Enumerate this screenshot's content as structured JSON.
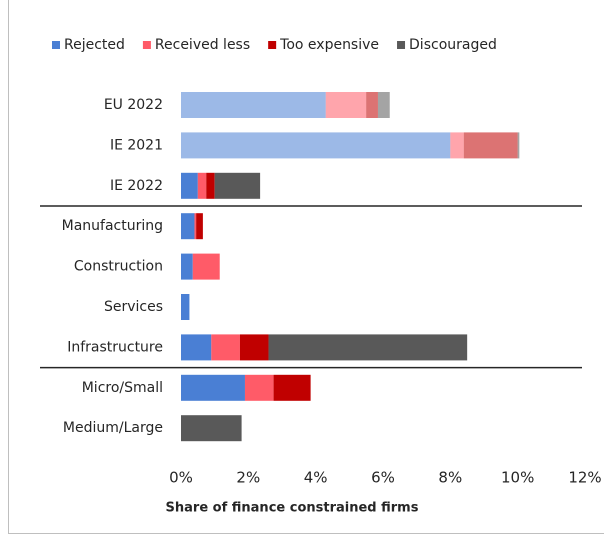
{
  "chart_data": {
    "type": "stacked-barh",
    "xlabel": "Share of finance constrained firms",
    "categories": [
      "EU 2022",
      "IE 2021",
      "IE 2022",
      "Manufacturing",
      "Construction",
      "Services",
      "Infrastructure",
      "Micro/Small",
      "Medium/Large"
    ],
    "category_opacity": [
      0.55,
      0.55,
      1,
      1,
      1,
      1,
      1,
      1,
      1
    ],
    "series": [
      {
        "name": "Rejected",
        "color": "#4a7fd4",
        "values": [
          4.3,
          8.0,
          0.5,
          0.4,
          0.35,
          0.25,
          0.9,
          1.9,
          0
        ]
      },
      {
        "name": "Received less",
        "color": "#ff5b68",
        "values": [
          1.2,
          0.4,
          0.25,
          0.05,
          0.8,
          0,
          0.85,
          0.85,
          0
        ]
      },
      {
        "name": "Too expensive",
        "color": "#c00000",
        "values": [
          0.35,
          1.6,
          0.25,
          0.2,
          0,
          0,
          0.85,
          1.1,
          0
        ]
      },
      {
        "name": "Discouraged",
        "color": "#595959",
        "values": [
          0.35,
          0.05,
          1.35,
          0,
          0,
          0,
          5.9,
          0,
          1.8
        ]
      }
    ],
    "xlim": [
      0,
      12
    ],
    "xticks": [
      {
        "value": 0,
        "label": "0%"
      },
      {
        "value": 2,
        "label": "2%"
      },
      {
        "value": 4,
        "label": "4%"
      },
      {
        "value": 6,
        "label": "6%"
      },
      {
        "value": 8,
        "label": "8%"
      },
      {
        "value": 10,
        "label": "10%"
      },
      {
        "value": 12,
        "label": "12%"
      }
    ],
    "legend": "top"
  }
}
